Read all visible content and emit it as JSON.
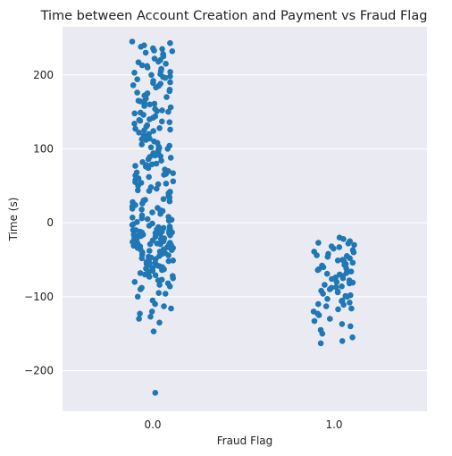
{
  "chart_data": {
    "type": "scatter",
    "title": "Time between Account Creation and Payment vs Fraud Flag",
    "xlabel": "Fraud Flag",
    "ylabel": "Time (s)",
    "categories": [
      "0.0",
      "1.0"
    ],
    "ylim": [
      -255,
      265
    ],
    "yticks": [
      -200,
      -100,
      0,
      100,
      200
    ],
    "ytick_labels": [
      "−200",
      "−100",
      "0",
      "100",
      "200"
    ],
    "grid": true,
    "marker_color": "#1f77b4",
    "background_color": "#eaeaf2",
    "series": [
      {
        "category": "0.0",
        "values": [
          245,
          243,
          240,
          238,
          235,
          233,
          230,
          228,
          226,
          222,
          220,
          218,
          215,
          213,
          210,
          208,
          205,
          203,
          201,
          200,
          198,
          196,
          194,
          192,
          190,
          188,
          185,
          183,
          180,
          178,
          175,
          173,
          170,
          168,
          165,
          163,
          160,
          158,
          156,
          154,
          152,
          150,
          148,
          146,
          144,
          142,
          140,
          138,
          136,
          134,
          132,
          130,
          128,
          126,
          124,
          122,
          120,
          118,
          116,
          114,
          112,
          110,
          108,
          106,
          104,
          102,
          100,
          98,
          96,
          94,
          92,
          90,
          88,
          86,
          84,
          82,
          80,
          78,
          76,
          74,
          72,
          70,
          68,
          66,
          64,
          62,
          60,
          58,
          56,
          54,
          52,
          50,
          48,
          46,
          44,
          42,
          40,
          38,
          36,
          34,
          32,
          30,
          28,
          26,
          24,
          22,
          20,
          18,
          16,
          14,
          12,
          10,
          8,
          6,
          5,
          3,
          1,
          -1,
          -3,
          -5,
          -6,
          -8,
          -10,
          -11,
          -12,
          -13,
          -14,
          -15,
          -16,
          -17,
          -18,
          -19,
          -20,
          -21,
          -22,
          -23,
          -24,
          -25,
          -26,
          -27,
          -28,
          -29,
          -30,
          -31,
          -32,
          -33,
          -34,
          -35,
          -36,
          -38,
          -40,
          -42,
          -44,
          -46,
          -48,
          -50,
          -52,
          -54,
          -56,
          -58,
          -60,
          -62,
          -64,
          -66,
          -68,
          -70,
          -72,
          -75,
          -78,
          -82,
          -86,
          -90,
          -95,
          -100,
          -105,
          -110,
          -113,
          -116,
          -120,
          -123,
          -127,
          -130,
          -135,
          -147,
          -230,
          236,
          225,
          212,
          197,
          186,
          172,
          161,
          149,
          137,
          125,
          113,
          101,
          89,
          77,
          65,
          53,
          41,
          29,
          17,
          4,
          -2,
          -7,
          -9,
          -12,
          -14,
          -16,
          -18,
          -20,
          -22,
          -24,
          -26,
          -28,
          -30,
          -32,
          -34,
          -36,
          -39,
          -43,
          -47,
          -51,
          -55,
          -59,
          -63,
          -67,
          -73,
          -80,
          -88,
          -96,
          232,
          217,
          204,
          189,
          176,
          164,
          151,
          139,
          127,
          115,
          103,
          91,
          79,
          67,
          55,
          43,
          31,
          19,
          7,
          -4,
          -10,
          -13,
          -17,
          -21,
          -25,
          -29,
          -33,
          -37,
          -41,
          -45,
          -49,
          -53,
          -57,
          -61,
          -65,
          -71,
          -77,
          -84
        ]
      },
      {
        "category": "1.0",
        "values": [
          -20,
          -22,
          -25,
          -28,
          -30,
          -32,
          -35,
          -37,
          -40,
          -42,
          -44,
          -46,
          -48,
          -50,
          -52,
          -54,
          -56,
          -58,
          -60,
          -62,
          -64,
          -66,
          -68,
          -70,
          -72,
          -74,
          -76,
          -78,
          -80,
          -82,
          -84,
          -86,
          -88,
          -90,
          -92,
          -94,
          -96,
          -98,
          -100,
          -103,
          -106,
          -108,
          -110,
          -113,
          -116,
          -120,
          -125,
          -130,
          -133,
          -137,
          -140,
          -145,
          -150,
          -155,
          -160,
          -163,
          -27,
          -33,
          -39,
          -45,
          -51,
          -57,
          -63,
          -69,
          -75,
          -81,
          -87,
          -93,
          -99,
          -105,
          -111,
          -117,
          -123
        ]
      }
    ]
  }
}
